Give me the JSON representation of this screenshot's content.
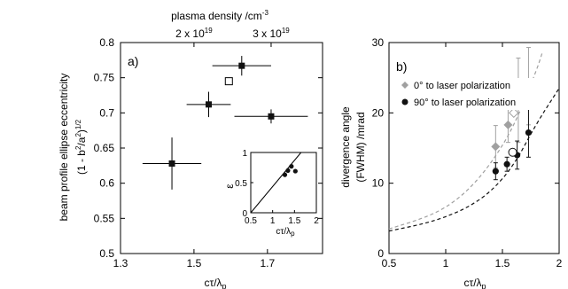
{
  "chart_data": [
    {
      "panel": "a)",
      "type": "scatter",
      "xlabel": "cτ/λ",
      "xlabel_sub": "p",
      "ylabel_line1": "beam profile ellipse eccentricity",
      "ylabel_line2": "(1 - b",
      "ylabel_sup1": "2",
      "ylabel_mid": "/a",
      "ylabel_sup2": "2",
      "ylabel_end": ")",
      "ylabel_sup3": "1/2",
      "xlim": [
        1.3,
        1.85
      ],
      "ylim": [
        0.5,
        0.8
      ],
      "xticks": [
        "1.3",
        "1.5",
        "1.7"
      ],
      "xtick_values": [
        1.3,
        1.5,
        1.7
      ],
      "yticks": [
        "0.5",
        "0.55",
        "0.6",
        "0.65",
        "0.7",
        "0.75",
        "0.8"
      ],
      "ytick_values": [
        0.5,
        0.55,
        0.6,
        0.65,
        0.7,
        0.75,
        0.8
      ],
      "top_axis": {
        "label_prefix": "plasma density /cm",
        "label_sup": "-3",
        "ticks": [
          {
            "x": 1.5,
            "label_base": "2 x 10",
            "label_sup": "19"
          },
          {
            "x": 1.71,
            "label_base": "3 x 10",
            "label_sup": "19"
          }
        ]
      },
      "points": [
        {
          "x": 1.44,
          "y": 0.628,
          "xerr": 0.08,
          "yerr": 0.037
        },
        {
          "x": 1.54,
          "y": 0.712,
          "xerr": 0.06,
          "yerr": 0.018
        },
        {
          "x": 1.63,
          "y": 0.767,
          "xerr": 0.08,
          "yerr": 0.014
        },
        {
          "x": 1.71,
          "y": 0.695,
          "xerr": 0.1,
          "yerr": 0.01
        }
      ],
      "open_points": [
        {
          "x": 1.595,
          "y": 0.745
        }
      ],
      "inset": {
        "xlabel": "cτ/λ",
        "xlabel_sub": "p",
        "ylabel": "ε",
        "xlim": [
          0.5,
          2
        ],
        "ylim": [
          0,
          1
        ],
        "xticks": [
          "0.5",
          "1",
          "1.5",
          "2"
        ],
        "xtick_values": [
          0.5,
          1,
          1.5,
          2
        ],
        "yticks": [
          "0",
          "0.5",
          "1"
        ],
        "ytick_values": [
          0,
          0.5,
          1
        ],
        "points": [
          {
            "x": 1.28,
            "y": 0.63
          },
          {
            "x": 1.35,
            "y": 0.7
          },
          {
            "x": 1.43,
            "y": 0.77
          },
          {
            "x": 1.52,
            "y": 0.69
          }
        ],
        "line": [
          [
            0.5,
            0
          ],
          [
            1.65,
            1
          ]
        ]
      }
    },
    {
      "panel": "b)",
      "type": "scatter",
      "xlabel": "cτ/λ",
      "xlabel_sub": "p",
      "ylabel_line1": "divergence angle",
      "ylabel_line2": "(FWHM) /mrad",
      "xlim": [
        0.5,
        2
      ],
      "ylim": [
        0,
        30
      ],
      "xticks": [
        "0.5",
        "1",
        "1.5",
        "2"
      ],
      "xtick_values": [
        0.5,
        1,
        1.5,
        2
      ],
      "yticks": [
        "0",
        "10",
        "20",
        "30"
      ],
      "ytick_values": [
        0,
        10,
        20,
        30
      ],
      "series": [
        {
          "name": "0° to laser polarization",
          "color": "#a0a0a0",
          "marker": "diamond",
          "points": [
            {
              "x": 1.44,
              "y": 15.2,
              "yerr": 3.0
            },
            {
              "x": 1.55,
              "y": 18.3,
              "yerr": 2.5
            },
            {
              "x": 1.64,
              "y": 21.8,
              "yerr": 6.0
            },
            {
              "x": 1.73,
              "y": 23.8,
              "yerr": 5.5
            }
          ],
          "open_points": [
            {
              "x": 1.6,
              "y": 20.0
            }
          ],
          "fit": [
            [
              0.5,
              3.5
            ],
            [
              0.8,
              5.0
            ],
            [
              1.0,
              6.5
            ],
            [
              1.2,
              9.0
            ],
            [
              1.4,
              12.8
            ],
            [
              1.6,
              18.0
            ],
            [
              1.8,
              26.0
            ],
            [
              1.85,
              28.5
            ]
          ]
        },
        {
          "name": "90° to laser polarization",
          "color": "#111111",
          "marker": "circle",
          "points": [
            {
              "x": 1.44,
              "y": 11.7,
              "yerr": 1.2
            },
            {
              "x": 1.54,
              "y": 12.7,
              "yerr": 1.0
            },
            {
              "x": 1.63,
              "y": 14.0,
              "yerr": 2.0
            },
            {
              "x": 1.73,
              "y": 17.2,
              "yerr": 3.5
            }
          ],
          "open_points": [
            {
              "x": 1.59,
              "y": 14.4
            }
          ],
          "fit": [
            [
              0.5,
              3.2
            ],
            [
              0.8,
              4.2
            ],
            [
              1.0,
              5.2
            ],
            [
              1.2,
              6.6
            ],
            [
              1.4,
              8.8
            ],
            [
              1.6,
              12.5
            ],
            [
              1.8,
              18.5
            ],
            [
              2.0,
              23.5
            ]
          ]
        }
      ]
    }
  ]
}
